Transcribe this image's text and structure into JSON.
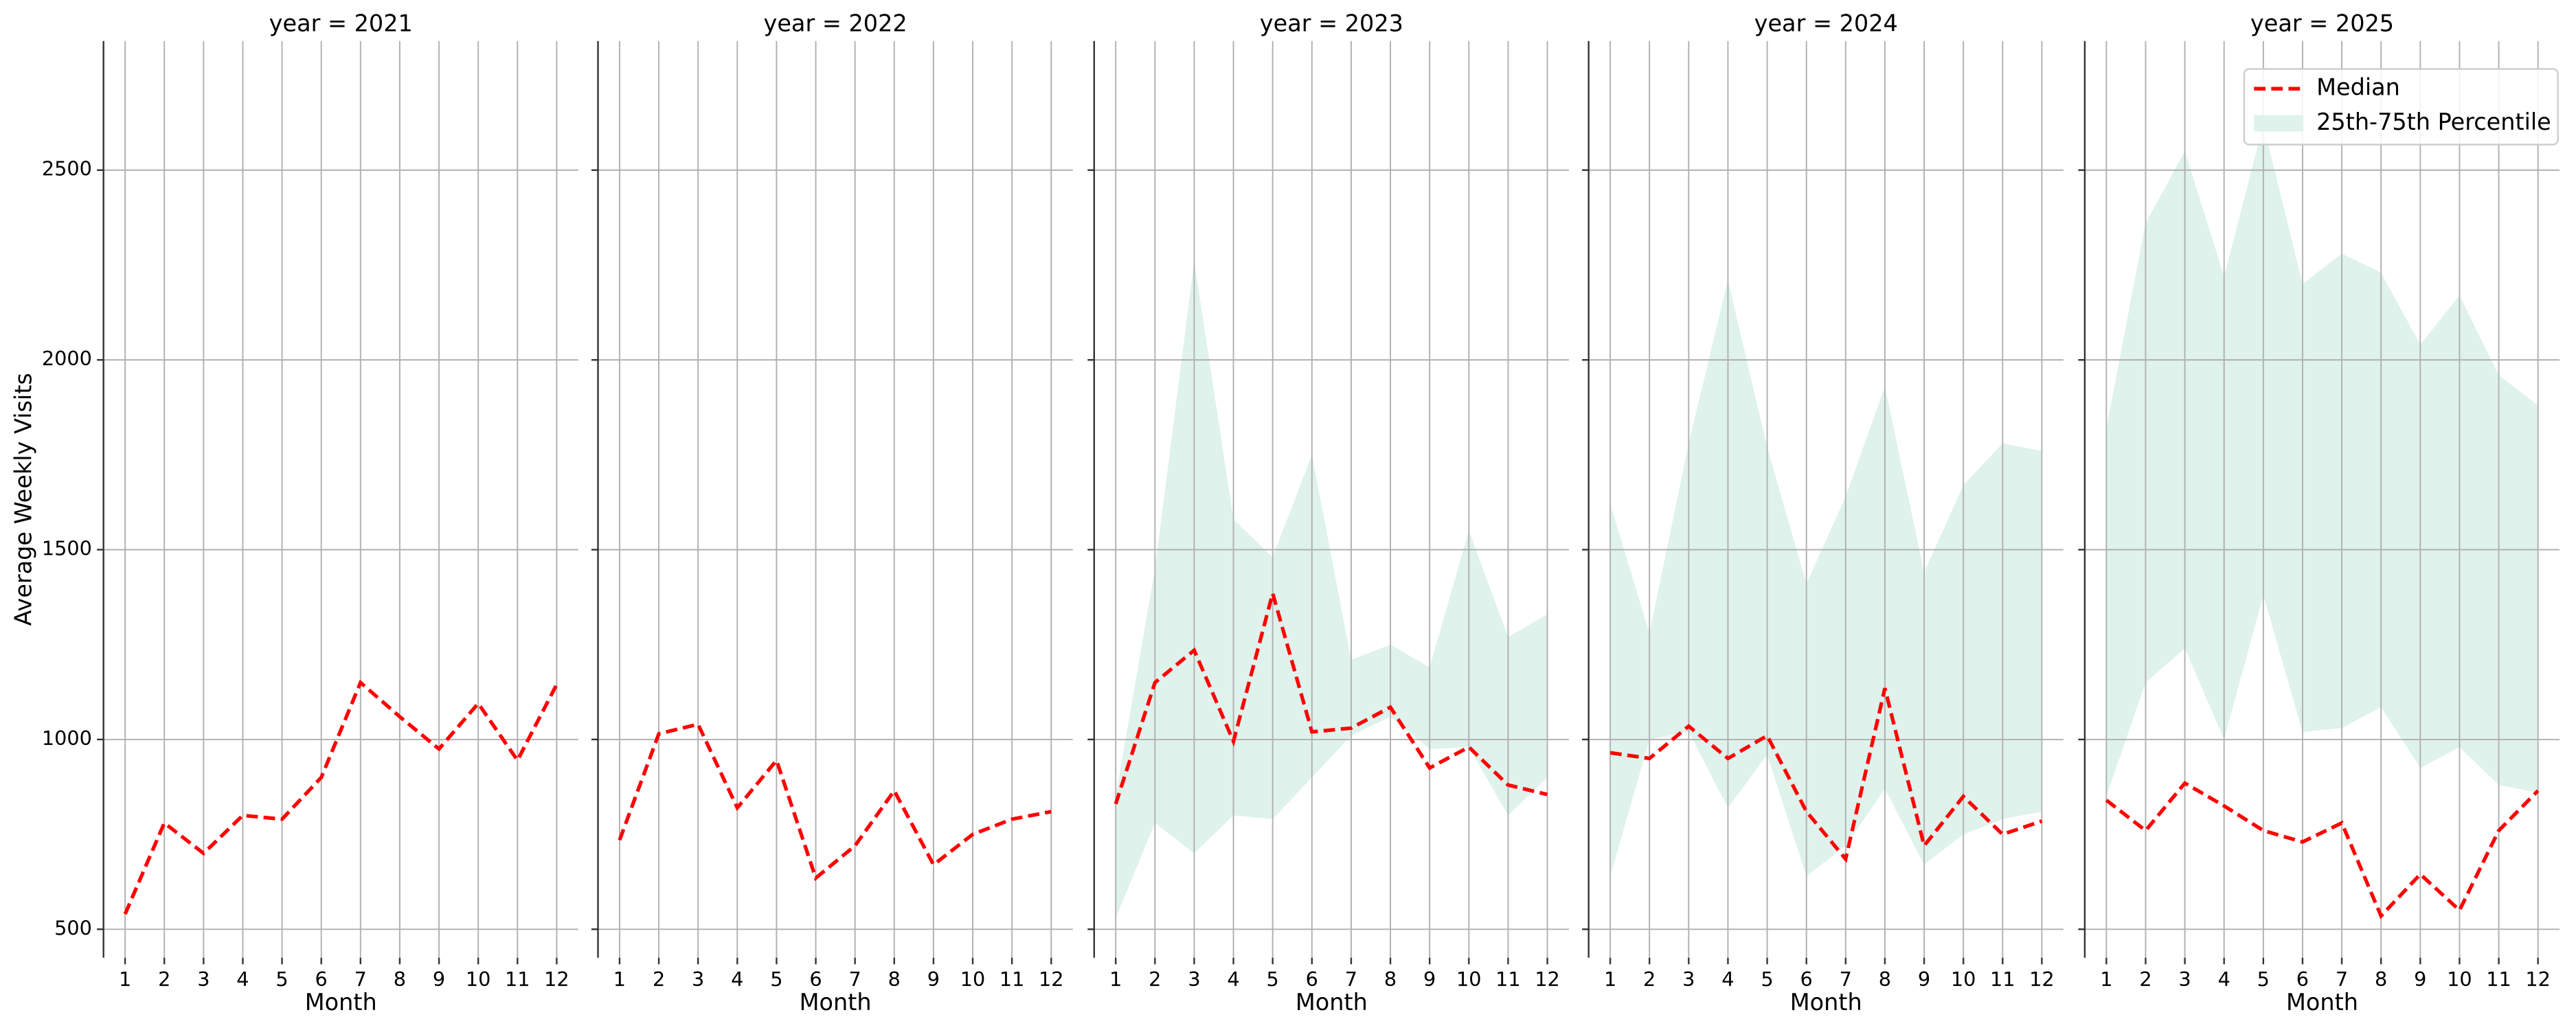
{
  "chart_data": [
    {
      "type": "line",
      "title": "year = 2021",
      "x_label": "Month",
      "y_label": "Average Weekly Visits",
      "x": [
        1,
        2,
        3,
        4,
        5,
        6,
        7,
        8,
        9,
        10,
        11,
        12
      ],
      "xlim": [
        0.45,
        12.55
      ],
      "xticks": [
        1,
        2,
        3,
        4,
        5,
        6,
        7,
        8,
        9,
        10,
        11,
        12
      ],
      "ylim": [
        425,
        2840
      ],
      "yticks": [
        500,
        1000,
        1500,
        2000,
        2500
      ],
      "grid": true,
      "series": [
        {
          "color": "#ff0000",
          "values": [
            540,
            780,
            700,
            800,
            790,
            900,
            1150,
            1060,
            975,
            1095,
            945,
            1145
          ]
        }
      ]
    },
    {
      "type": "line",
      "title": "year = 2022",
      "x_label": "Month",
      "x": [
        1,
        2,
        3,
        4,
        5,
        6,
        7,
        8,
        9,
        10,
        11,
        12
      ],
      "xlim": [
        0.45,
        12.55
      ],
      "xticks": [
        1,
        2,
        3,
        4,
        5,
        6,
        7,
        8,
        9,
        10,
        11,
        12
      ],
      "ylim": [
        425,
        2840
      ],
      "yticks": [
        500,
        1000,
        1500,
        2000,
        2500
      ],
      "grid": true,
      "series": [
        {
          "color": "#ff0000",
          "values": [
            735,
            1015,
            1040,
            820,
            945,
            635,
            720,
            865,
            670,
            750,
            790,
            810
          ]
        }
      ]
    },
    {
      "type": "line",
      "title": "year = 2023",
      "x_label": "Month",
      "x": [
        1,
        2,
        3,
        4,
        5,
        6,
        7,
        8,
        9,
        10,
        11,
        12
      ],
      "xlim": [
        0.45,
        12.55
      ],
      "xticks": [
        1,
        2,
        3,
        4,
        5,
        6,
        7,
        8,
        9,
        10,
        11,
        12
      ],
      "ylim": [
        425,
        2840
      ],
      "yticks": [
        500,
        1000,
        1500,
        2000,
        2500
      ],
      "grid": true,
      "band": {
        "color": "#dff2ec",
        "upper": [
          850,
          1450,
          2260,
          1580,
          1480,
          1750,
          1210,
          1250,
          1190,
          1550,
          1270,
          1330
        ],
        "lower": [
          530,
          780,
          700,
          800,
          790,
          900,
          1010,
          1060,
          975,
          980,
          800,
          900
        ]
      },
      "series": [
        {
          "color": "#ff0000",
          "values": [
            830,
            1150,
            1235,
            995,
            1385,
            1020,
            1030,
            1085,
            925,
            980,
            880,
            855
          ]
        }
      ]
    },
    {
      "type": "line",
      "title": "year = 2024",
      "x_label": "Month",
      "x": [
        1,
        2,
        3,
        4,
        5,
        6,
        7,
        8,
        9,
        10,
        11,
        12
      ],
      "xlim": [
        0.45,
        12.55
      ],
      "xticks": [
        1,
        2,
        3,
        4,
        5,
        6,
        7,
        8,
        9,
        10,
        11,
        12
      ],
      "ylim": [
        425,
        2840
      ],
      "yticks": [
        500,
        1000,
        1500,
        2000,
        2500
      ],
      "grid": true,
      "band": {
        "color": "#dff2ec",
        "upper": [
          1620,
          1280,
          1780,
          2210,
          1770,
          1410,
          1640,
          1930,
          1440,
          1670,
          1780,
          1760
        ],
        "lower": [
          640,
          1000,
          1020,
          820,
          960,
          640,
          720,
          870,
          670,
          750,
          790,
          810
        ]
      },
      "series": [
        {
          "color": "#ff0000",
          "values": [
            965,
            950,
            1035,
            950,
            1010,
            810,
            685,
            1135,
            720,
            850,
            750,
            785
          ]
        }
      ]
    },
    {
      "type": "line",
      "title": "year = 2025",
      "x_label": "Month",
      "x": [
        1,
        2,
        3,
        4,
        5,
        6,
        7,
        8,
        9,
        10,
        11,
        12
      ],
      "xlim": [
        0.45,
        12.55
      ],
      "xticks": [
        1,
        2,
        3,
        4,
        5,
        6,
        7,
        8,
        9,
        10,
        11,
        12
      ],
      "ylim": [
        425,
        2840
      ],
      "yticks": [
        500,
        1000,
        1500,
        2000,
        2500
      ],
      "grid": true,
      "legend": "upper right",
      "band": {
        "name": "25th-75th Percentile",
        "color": "#dff2ec",
        "upper": [
          1820,
          2360,
          2550,
          2220,
          2620,
          2200,
          2280,
          2230,
          2040,
          2170,
          1960,
          1880
        ],
        "lower": [
          850,
          1150,
          1240,
          1000,
          1380,
          1020,
          1030,
          1085,
          925,
          980,
          880,
          860
        ]
      },
      "series": [
        {
          "name": "Median",
          "color": "#ff0000",
          "values": [
            840,
            760,
            885,
            825,
            760,
            730,
            780,
            535,
            645,
            550,
            760,
            865
          ]
        }
      ]
    }
  ]
}
